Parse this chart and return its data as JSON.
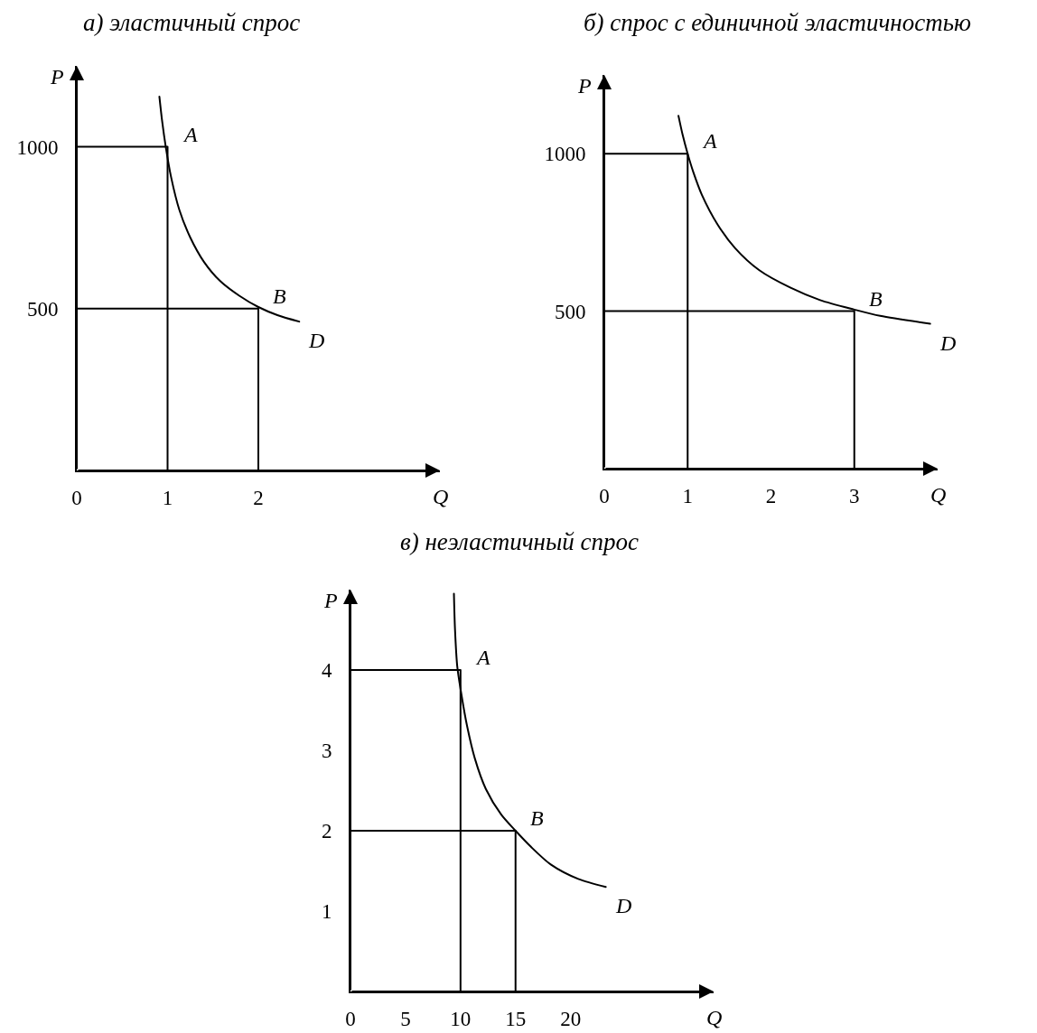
{
  "chart_data": [
    {
      "type": "line",
      "title": "а) эластичный спрос",
      "xlabel": "Q",
      "ylabel": "P",
      "xlim": [
        0,
        4
      ],
      "ylim": [
        0,
        1250
      ],
      "xticks": [
        0,
        1,
        2
      ],
      "yticks": [
        500,
        1000
      ],
      "series": [
        {
          "name": "D",
          "color": "#000000",
          "x": [
            0.91,
            0.94,
            0.98,
            1.04,
            1.13,
            1.25,
            1.4,
            1.58,
            1.79,
            2.0,
            2.21,
            2.45
          ],
          "values": [
            1155,
            1080,
            1000,
            905,
            805,
            720,
            645,
            585,
            540,
            505,
            480,
            460
          ]
        },
        {
          "color": "#000000",
          "x": [
            0,
            1,
            1
          ],
          "values": [
            1000,
            1000,
            0
          ]
        },
        {
          "color": "#000000",
          "x": [
            0,
            2,
            2
          ],
          "values": [
            500,
            500,
            0
          ]
        }
      ],
      "annotations": [
        {
          "text": "A",
          "x": 1,
          "y": 1000
        },
        {
          "text": "B",
          "x": 2,
          "y": 500
        }
      ]
    },
    {
      "type": "line",
      "title": "б) спрос с единичной эластичностью",
      "xlabel": "Q",
      "ylabel": "P",
      "xlim": [
        0,
        4
      ],
      "ylim": [
        0,
        1250
      ],
      "xticks": [
        0,
        1,
        2,
        3
      ],
      "yticks": [
        500,
        1000
      ],
      "series": [
        {
          "name": "D",
          "color": "#000000",
          "x": [
            0.89,
            0.94,
            1.0,
            1.07,
            1.17,
            1.36,
            1.57,
            1.86,
            2.23,
            2.59,
            3.0,
            3.31,
            3.91
          ],
          "values": [
            1120,
            1060,
            1000,
            940,
            870,
            775,
            700,
            630,
            575,
            535,
            505,
            485,
            460
          ]
        },
        {
          "color": "#000000",
          "x": [
            0,
            1,
            1
          ],
          "values": [
            1000,
            1000,
            0
          ]
        },
        {
          "color": "#000000",
          "x": [
            0,
            3,
            3
          ],
          "values": [
            500,
            500,
            0
          ]
        }
      ],
      "annotations": [
        {
          "text": "A",
          "x": 1,
          "y": 1000
        },
        {
          "text": "B",
          "x": 3,
          "y": 500
        }
      ]
    },
    {
      "type": "line",
      "title": "в) неэластичный спрос",
      "xlabel": "Q",
      "ylabel": "P",
      "xlim": [
        0,
        33
      ],
      "ylim": [
        0,
        5
      ],
      "xticks": [
        0,
        5,
        10,
        15,
        20
      ],
      "yticks": [
        1,
        2,
        3,
        4
      ],
      "series": [
        {
          "name": "D",
          "color": "#000000",
          "x": [
            9.4,
            9.5,
            9.7,
            10.1,
            10.6,
            11.3,
            12.3,
            13.7,
            15.0,
            16.4,
            18.2,
            20.7,
            23.2
          ],
          "values": [
            4.95,
            4.5,
            4.05,
            3.68,
            3.3,
            2.9,
            2.52,
            2.2,
            2.0,
            1.8,
            1.58,
            1.4,
            1.3
          ]
        },
        {
          "color": "#000000",
          "x": [
            0,
            10,
            10
          ],
          "values": [
            4,
            4,
            0
          ]
        },
        {
          "color": "#000000",
          "x": [
            0,
            15,
            15
          ],
          "values": [
            2,
            2,
            0
          ]
        }
      ],
      "annotations": [
        {
          "text": "A",
          "x": 10,
          "y": 4
        },
        {
          "text": "B",
          "x": 15,
          "y": 2
        }
      ]
    }
  ]
}
